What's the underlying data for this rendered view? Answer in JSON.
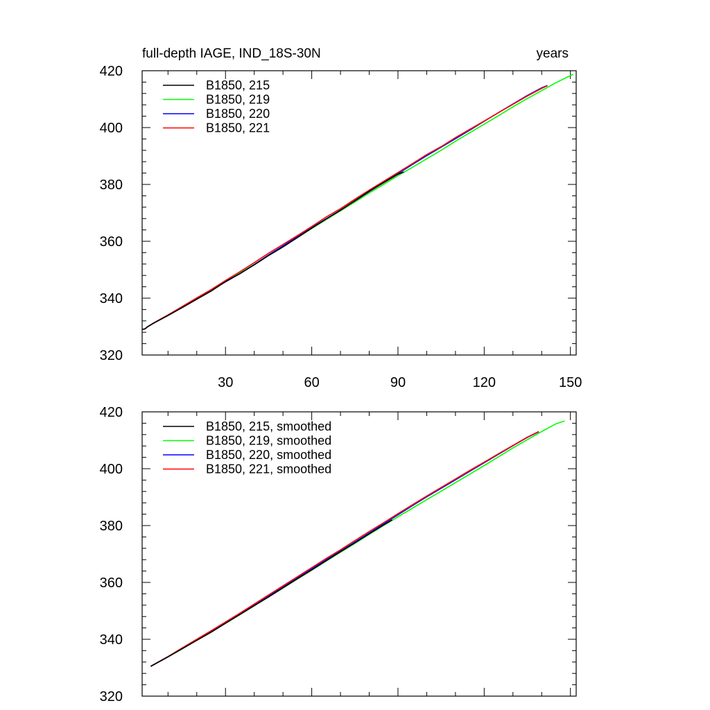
{
  "chart_data": [
    {
      "type": "line",
      "title": "full-depth IAGE, IND_18S-30N",
      "title_right": "years",
      "xlabel": "",
      "ylabel": "",
      "xlim": [
        1,
        152
      ],
      "ylim": [
        320,
        420
      ],
      "xticks": [
        30,
        60,
        90,
        120,
        150
      ],
      "yticks": [
        320,
        340,
        360,
        380,
        400,
        420
      ],
      "grid": false,
      "legend_position": "top-left",
      "series": [
        {
          "name": "B1850, 215",
          "color": "#000000",
          "x": [
            1,
            2,
            3,
            5,
            10,
            15,
            20,
            25,
            30,
            35,
            40,
            45,
            50,
            55,
            60,
            65,
            70,
            75,
            80,
            85,
            90,
            92
          ],
          "y": [
            329.0,
            329.2,
            330.0,
            331.2,
            333.9,
            336.7,
            339.6,
            342.5,
            345.8,
            348.6,
            351.7,
            355.0,
            358.0,
            361.3,
            364.6,
            367.8,
            370.9,
            374.3,
            377.6,
            380.6,
            383.6,
            384.4
          ]
        },
        {
          "name": "B1850, 219",
          "color": "#00ff00",
          "x": [
            1,
            2,
            3,
            5,
            10,
            15,
            20,
            25,
            30,
            35,
            40,
            45,
            50,
            55,
            60,
            65,
            70,
            75,
            80,
            85,
            90,
            95,
            100,
            105,
            110,
            115,
            120,
            125,
            130,
            135,
            140,
            145,
            150,
            151
          ],
          "y": [
            329.0,
            329.2,
            330.0,
            331.2,
            333.9,
            336.8,
            339.9,
            342.8,
            345.8,
            348.9,
            351.9,
            355.0,
            358.2,
            361.3,
            364.5,
            367.6,
            370.7,
            373.8,
            377.0,
            380.0,
            383.1,
            386.0,
            389.0,
            392.0,
            395.2,
            398.2,
            401.2,
            404.2,
            407.3,
            410.2,
            413.0,
            415.8,
            418.3,
            418.7
          ]
        },
        {
          "name": "B1850, 220",
          "color": "#0000ff",
          "x": [
            1,
            2,
            3,
            5,
            10,
            15,
            20,
            25,
            30,
            35,
            40,
            45,
            50,
            55,
            60,
            65,
            70,
            75,
            80,
            85,
            90,
            95,
            100,
            105,
            110,
            115,
            120,
            125,
            130,
            135,
            140,
            142
          ],
          "y": [
            329.0,
            329.2,
            330.0,
            331.2,
            334.0,
            336.9,
            339.8,
            342.8,
            345.7,
            348.6,
            351.8,
            355.2,
            358.4,
            361.7,
            364.8,
            367.9,
            371.0,
            374.2,
            377.5,
            380.7,
            383.8,
            387.0,
            390.1,
            393.1,
            396.1,
            399.1,
            402.2,
            405.3,
            408.3,
            411.3,
            414.0,
            414.8
          ]
        },
        {
          "name": "B1850, 221",
          "color": "#ff0000",
          "x": [
            1,
            2,
            3,
            5,
            10,
            15,
            20,
            25,
            30,
            35,
            40,
            45,
            50,
            55,
            60,
            65,
            70,
            75,
            80,
            85,
            90,
            95,
            100,
            105,
            110,
            115,
            120,
            125,
            130,
            135,
            140,
            142
          ],
          "y": [
            329.0,
            329.2,
            330.0,
            331.3,
            334.1,
            337.1,
            340.1,
            343.0,
            346.2,
            349.3,
            352.5,
            355.8,
            358.9,
            362.0,
            365.2,
            368.5,
            371.5,
            374.8,
            378.0,
            381.1,
            384.2,
            387.3,
            390.5,
            393.3,
            396.5,
            399.4,
            402.3,
            405.3,
            408.2,
            411.1,
            413.8,
            414.7
          ]
        }
      ]
    },
    {
      "type": "line",
      "xlabel": "",
      "ylabel": "",
      "xlim": [
        1,
        152
      ],
      "ylim": [
        320,
        420
      ],
      "xticks": [
        30,
        60,
        90,
        120,
        150
      ],
      "yticks": [
        320,
        340,
        360,
        380,
        400,
        420
      ],
      "grid": false,
      "legend_position": "top-left",
      "series": [
        {
          "name": "B1850, 215, smoothed",
          "color": "#000000",
          "x": [
            4,
            10,
            15,
            20,
            25,
            30,
            35,
            40,
            45,
            50,
            55,
            60,
            65,
            70,
            75,
            80,
            85,
            88
          ],
          "y": [
            330.5,
            333.8,
            336.7,
            339.6,
            342.5,
            345.6,
            348.7,
            351.8,
            354.9,
            358.1,
            361.3,
            364.4,
            367.6,
            370.8,
            373.9,
            377.1,
            380.2,
            382.0
          ]
        },
        {
          "name": "B1850, 219, smoothed",
          "color": "#00ff00",
          "x": [
            4,
            10,
            15,
            20,
            25,
            30,
            35,
            40,
            45,
            50,
            55,
            60,
            65,
            70,
            75,
            80,
            85,
            90,
            95,
            100,
            105,
            110,
            115,
            120,
            125,
            130,
            135,
            140,
            145,
            148
          ],
          "y": [
            330.5,
            333.8,
            336.7,
            339.7,
            342.6,
            345.6,
            348.7,
            351.8,
            354.9,
            358.0,
            361.2,
            364.3,
            367.5,
            370.6,
            373.7,
            376.9,
            380.0,
            383.1,
            386.1,
            389.1,
            392.1,
            395.1,
            398.1,
            401.1,
            404.2,
            407.3,
            410.2,
            413.1,
            415.8,
            416.8
          ]
        },
        {
          "name": "B1850, 220, smoothed",
          "color": "#0000ff",
          "x": [
            4,
            10,
            15,
            20,
            25,
            30,
            35,
            40,
            45,
            50,
            55,
            60,
            65,
            70,
            75,
            80,
            85,
            90,
            95,
            100,
            105,
            110,
            115,
            120,
            125,
            130,
            135,
            139
          ],
          "y": [
            330.5,
            333.9,
            336.9,
            339.9,
            342.8,
            345.8,
            348.9,
            352.0,
            355.2,
            358.4,
            361.6,
            364.8,
            368.0,
            371.1,
            374.2,
            377.4,
            380.6,
            383.8,
            387.0,
            390.1,
            393.1,
            396.1,
            399.1,
            402.1,
            405.1,
            408.1,
            411.0,
            413.0
          ]
        },
        {
          "name": "B1850, 221, smoothed",
          "color": "#ff0000",
          "x": [
            4,
            10,
            15,
            20,
            25,
            30,
            35,
            40,
            45,
            50,
            55,
            60,
            65,
            70,
            75,
            80,
            85,
            90,
            95,
            100,
            105,
            110,
            115,
            120,
            125,
            130,
            135,
            139
          ],
          "y": [
            330.5,
            333.9,
            337.0,
            340.0,
            343.0,
            346.1,
            349.2,
            352.4,
            355.6,
            358.8,
            362.0,
            365.2,
            368.4,
            371.5,
            374.7,
            377.9,
            381.0,
            384.2,
            387.3,
            390.4,
            393.4,
            396.4,
            399.4,
            402.3,
            405.3,
            408.2,
            411.1,
            413.1
          ]
        }
      ]
    }
  ]
}
